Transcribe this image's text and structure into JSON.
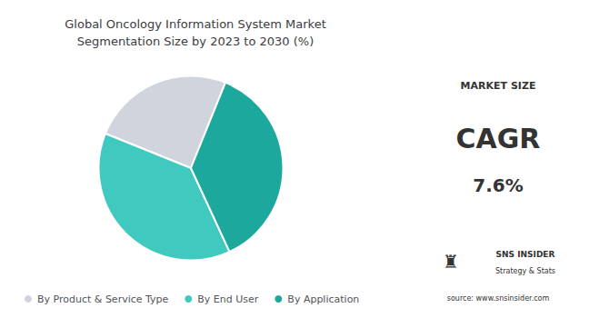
{
  "chart_data": {
    "type": "pie",
    "title": "Global Oncology Information System Market\nSegmentation Size by 2023 to 2030 (%)",
    "categories": [
      "By Product & Service Type",
      "By End User",
      "By Application"
    ],
    "values": [
      25,
      38,
      37
    ],
    "colors": [
      "#d0d4dc",
      "#40c9be",
      "#1da89e"
    ],
    "legend": "bottom",
    "annotations": [
      "MARKET SIZE",
      "CAGR",
      "7.6%",
      "♜",
      "SNS INSIDER",
      "Strategy & Stats",
      "source: www.snsinsider.com"
    ]
  }
}
